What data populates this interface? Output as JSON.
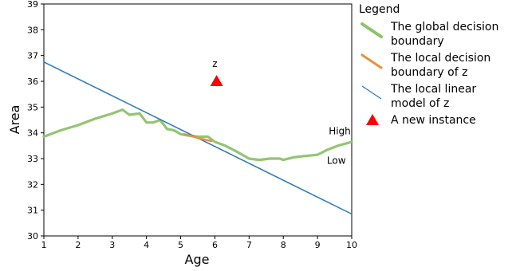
{
  "chart_data": {
    "type": "line",
    "xlabel": "Age",
    "ylabel": "Area",
    "xlim": [
      1,
      10
    ],
    "ylim": [
      30,
      39
    ],
    "xticks": [
      "1",
      "2",
      "3",
      "4",
      "5",
      "6",
      "7",
      "8",
      "9",
      "10"
    ],
    "yticks": [
      "30",
      "31",
      "32",
      "33",
      "34",
      "35",
      "36",
      "37",
      "38",
      "39"
    ],
    "grid": false,
    "legend_position": "right",
    "legend_title": "Legend",
    "series": [
      {
        "name": "The global decision boundary",
        "kind": "line",
        "color": "#8dc26a",
        "x": [
          1.0,
          1.5,
          2.0,
          2.5,
          3.0,
          3.3,
          3.5,
          3.8,
          4.0,
          4.2,
          4.4,
          4.6,
          4.8,
          5.0,
          5.2,
          5.5,
          5.8,
          6.0,
          6.3,
          6.6,
          7.0,
          7.3,
          7.6,
          7.9,
          8.0,
          8.3,
          8.6,
          9.0,
          9.3,
          9.6,
          10.0
        ],
        "y": [
          33.85,
          34.1,
          34.3,
          34.55,
          34.75,
          34.9,
          34.7,
          34.75,
          34.4,
          34.4,
          34.5,
          34.15,
          34.1,
          33.95,
          33.9,
          33.85,
          33.85,
          33.65,
          33.5,
          33.3,
          33.0,
          32.95,
          33.0,
          33.0,
          32.95,
          33.05,
          33.1,
          33.15,
          33.35,
          33.5,
          33.65
        ]
      },
      {
        "name": "The local decision boundary of z",
        "kind": "line",
        "color": "#e8923d",
        "x": [
          5.1,
          5.3,
          5.5,
          5.7,
          5.9
        ],
        "y": [
          33.95,
          33.88,
          33.8,
          33.74,
          33.68
        ]
      },
      {
        "name": "The local linear model of z",
        "kind": "line",
        "color": "#2a7ab9",
        "x": [
          1.0,
          10.0
        ],
        "y": [
          36.75,
          30.85
        ]
      },
      {
        "name": "A new instance",
        "kind": "marker",
        "color": "#ff0000",
        "x": [
          6.05
        ],
        "y": [
          36.0
        ]
      }
    ],
    "annotations": [
      {
        "text": "z",
        "x": 6.0,
        "y": 36.55
      },
      {
        "text": "High",
        "x": 9.65,
        "y": 33.95
      },
      {
        "text": "Low",
        "x": 9.55,
        "y": 32.8
      }
    ]
  }
}
